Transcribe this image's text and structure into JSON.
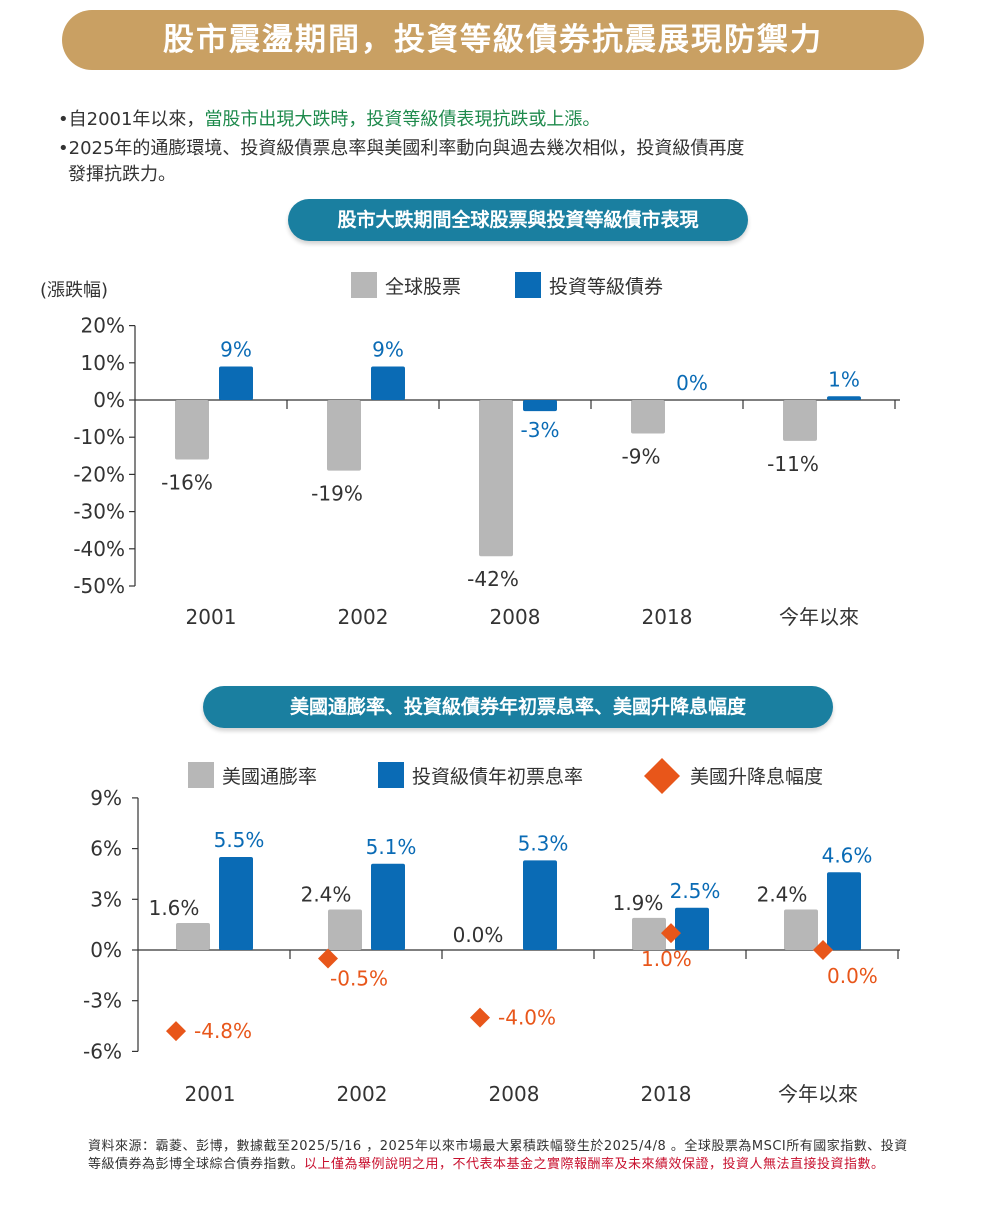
{
  "header": {
    "title": "股市震盪期間，投資等級債券抗震展現防禦力"
  },
  "bullets": [
    {
      "prefix": "•自2001年以來，",
      "highlight": "當股市出現大跌時，投資等級債表現抗跌或上漲。"
    },
    {
      "line1": "•2025年的通膨環境、投資級債票息率與美國利率動向與過去幾次相似，投資級債再度",
      "line2": "發揮抗跌力。"
    }
  ],
  "colors": {
    "gray": "#b7b7b7",
    "blue": "#0a6bb5",
    "orange": "#e8561a",
    "gold": "#c9a063",
    "teal": "#1a7fa0"
  },
  "chart_data": [
    {
      "type": "bar",
      "title": "股市大跌期間全球股票與投資等級債市表現",
      "ylabel": "(漲跌幅)",
      "categories": [
        "2001",
        "2002",
        "2008",
        "2018",
        "今年以來"
      ],
      "series": [
        {
          "name": "全球股票",
          "values": [
            -16,
            -19,
            -42,
            -9,
            -11
          ],
          "labels": [
            "-16%",
            "-19%",
            "-42%",
            "-9%",
            "-11%"
          ]
        },
        {
          "name": "投資等級債券",
          "values": [
            9,
            9,
            -3,
            0,
            1
          ],
          "labels": [
            "9%",
            "9%",
            "-3%",
            "0%",
            "1%"
          ]
        }
      ],
      "yticks": [
        "20%",
        "10%",
        "0%",
        "-10%",
        "-20%",
        "-30%",
        "-40%",
        "-50%"
      ],
      "ylim": [
        -50,
        20
      ],
      "legend": "top-center"
    },
    {
      "type": "bar",
      "title": "美國通膨率、投資級債券年初票息率、美國升降息幅度",
      "categories": [
        "2001",
        "2002",
        "2008",
        "2018",
        "今年以來"
      ],
      "series": [
        {
          "name": "美國通膨率",
          "values": [
            1.6,
            2.4,
            0.0,
            1.9,
            2.4
          ],
          "labels": [
            "1.6%",
            "2.4%",
            "0.0%",
            "1.9%",
            "2.4%"
          ]
        },
        {
          "name": "投資級債年初票息率",
          "values": [
            5.5,
            5.1,
            5.3,
            2.5,
            4.6
          ],
          "labels": [
            "5.5%",
            "5.1%",
            "5.3%",
            "2.5%",
            "4.6%"
          ]
        },
        {
          "name": "美國升降息幅度",
          "marker": "diamond",
          "values": [
            -4.8,
            -0.5,
            -4.0,
            1.0,
            0.0
          ],
          "labels": [
            "-4.8%",
            "-0.5%",
            "-4.0%",
            "1.0%",
            "0.0%"
          ]
        }
      ],
      "yticks": [
        "9%",
        "6%",
        "3%",
        "0%",
        "-3%",
        "-6%"
      ],
      "ylim": [
        -6,
        9
      ],
      "legend": "top-center"
    }
  ],
  "footnote": {
    "text1": "資料來源：霸菱、彭博，數據截至2025/5/16 ，2025年以來市場最大累積跌幅發生於2025/4/8 。全球股票為MSCI所有國家指數、投資等級債券為彭博全球綜合債券指數。",
    "text2": "以上僅為舉例說明之用，不代表本基金之實際報酬率及未來績效保證，投資人無法直接投資指數。"
  }
}
